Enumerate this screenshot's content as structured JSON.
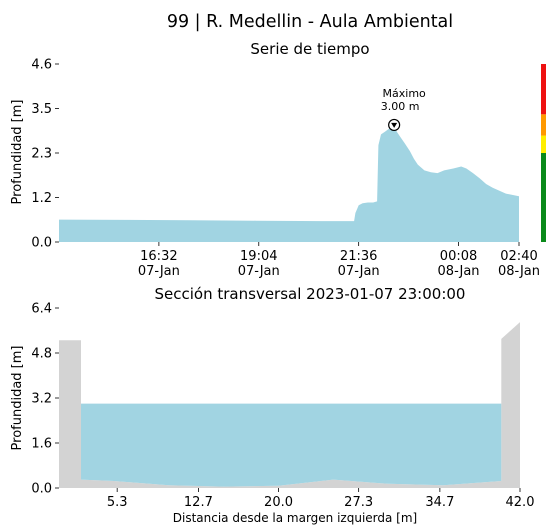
{
  "title": "99 | R. Medellin - Aula Ambiental",
  "chart_data": [
    {
      "type": "area",
      "title": "Serie de tiempo",
      "ylabel": "Profundidad [m]",
      "ylim": [
        0,
        4.6
      ],
      "y_ticks": [
        "0.0",
        "1.2",
        "2.3",
        "3.5",
        "4.6"
      ],
      "y_tick_values": [
        0,
        1.15,
        2.3,
        3.45,
        4.6
      ],
      "x_range_minutes": [
        0,
        700
      ],
      "x_ticks": [
        {
          "l1": "16:32",
          "l2": "07-Jan",
          "minute": 152
        },
        {
          "l1": "19:04",
          "l2": "07-Jan",
          "minute": 304
        },
        {
          "l1": "21:36",
          "l2": "07-Jan",
          "minute": 456
        },
        {
          "l1": "00:08",
          "l2": "08-Jan",
          "minute": 608
        },
        {
          "l1": "02:40",
          "l2": "08-Jan",
          "minute": 760
        }
      ],
      "series_color": "#a1d4e2",
      "series": {
        "x": [
          0,
          100,
          200,
          300,
          400,
          449,
          451,
          456,
          462,
          470,
          478,
          484,
          486,
          490,
          496,
          500,
          504,
          508,
          512,
          518,
          526,
          534,
          540,
          546,
          556,
          566,
          576,
          586,
          600,
          612,
          620,
          630,
          640,
          650,
          660,
          680,
          700
        ],
        "y": [
          0.58,
          0.57,
          0.56,
          0.55,
          0.54,
          0.54,
          0.75,
          0.95,
          1.0,
          1.02,
          1.02,
          1.05,
          2.5,
          2.78,
          2.85,
          2.9,
          2.95,
          2.98,
          2.9,
          2.75,
          2.55,
          2.35,
          2.15,
          2.0,
          1.85,
          1.8,
          1.78,
          1.85,
          1.9,
          1.95,
          1.9,
          1.78,
          1.65,
          1.5,
          1.4,
          1.25,
          1.18
        ]
      },
      "max_annotation": {
        "label": "Máximo",
        "value": "3.00 m",
        "minute": 510,
        "y": 3.0
      },
      "alert_bar": [
        {
          "from": 0,
          "to": 2.3,
          "color": "#0a8a1a"
        },
        {
          "from": 2.3,
          "to": 2.75,
          "color": "#ffee00"
        },
        {
          "from": 2.75,
          "to": 3.3,
          "color": "#ff9900"
        },
        {
          "from": 3.3,
          "to": 4.6,
          "color": "#ee1111"
        }
      ]
    },
    {
      "type": "area",
      "title": "Sección transversal 2023-01-07 23:00:00",
      "xlabel": "Distancia desde la margen izquierda [m]",
      "ylabel": "Profundidad [m]",
      "ylim": [
        0,
        6.4
      ],
      "xlim": [
        0,
        42
      ],
      "y_ticks": [
        "0.0",
        "1.6",
        "3.2",
        "4.8",
        "6.4"
      ],
      "y_tick_values": [
        0,
        1.6,
        3.2,
        4.8,
        6.4
      ],
      "x_ticks": [
        "5.3",
        "12.7",
        "20.0",
        "27.3",
        "34.7",
        "42.0"
      ],
      "x_tick_values": [
        5.3,
        12.7,
        20.0,
        27.3,
        34.7,
        42.0
      ],
      "water_level": 3.0,
      "water_color": "#a1d4e2",
      "bank_color": "#d3d3d3",
      "bed_profile": {
        "x": [
          0,
          2.0,
          2.0,
          5,
          10,
          15,
          20,
          25,
          30,
          35,
          40.3,
          40.3,
          42
        ],
        "y": [
          5.25,
          5.25,
          0.3,
          0.25,
          0.1,
          0.05,
          0.08,
          0.3,
          0.15,
          0.1,
          0.25,
          5.3,
          5.9
        ]
      }
    }
  ]
}
